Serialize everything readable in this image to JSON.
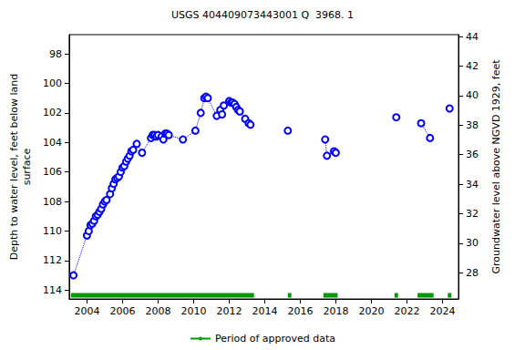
{
  "chart_data": {
    "type": "line",
    "title": "USGS 404409073443001 Q  3968. 1",
    "y_label": "Depth to water level, feet below land\nsurface",
    "y2_label": "Groundwater level above NGVD 1929, feet",
    "series": [
      {
        "type": "line",
        "color": "#0000ff",
        "marker": "open_circle",
        "line_style": "dotted",
        "x": [
          2003.24,
          2004.0,
          2004.1,
          2004.2,
          2004.3,
          2004.4,
          2004.5,
          2004.6,
          2004.7,
          2004.8,
          2004.9,
          2005.0,
          2005.1,
          2005.3,
          2005.4,
          2005.5,
          2005.6,
          2005.7,
          2005.8,
          2005.9,
          2006.0,
          2006.1,
          2006.2,
          2006.3,
          2006.4,
          2006.5,
          2006.6,
          2006.8,
          2007.1,
          2007.6,
          2007.7,
          2007.8,
          2007.9,
          2008.0,
          2008.2,
          2008.3,
          2008.4,
          2008.5,
          2008.6,
          2009.4,
          2010.1,
          2010.4,
          2010.6,
          2010.7,
          2010.8,
          2011.3,
          2011.5,
          2011.6,
          2011.7,
          2012.0,
          2012.1,
          2012.2,
          2012.3,
          2012.4,
          2012.5,
          2012.6,
          2012.9,
          2013.1,
          2013.2,
          null,
          2015.3,
          null,
          2017.4,
          2017.5,
          2017.9,
          2018.0,
          null,
          2021.4,
          null,
          2022.8,
          2023.3,
          null,
          2024.4
        ],
        "values": [
          113.0,
          110.3,
          110.0,
          109.6,
          109.5,
          109.3,
          109.0,
          108.9,
          108.7,
          108.5,
          108.2,
          108.0,
          107.9,
          107.5,
          107.1,
          106.8,
          106.5,
          106.4,
          106.3,
          106.0,
          105.7,
          105.6,
          105.3,
          105.1,
          104.9,
          104.6,
          104.5,
          104.1,
          104.7,
          103.7,
          103.5,
          103.5,
          103.6,
          103.5,
          103.6,
          103.8,
          103.4,
          103.4,
          103.5,
          103.8,
          103.2,
          102.0,
          101.0,
          100.9,
          101.0,
          102.2,
          101.8,
          102.1,
          101.5,
          101.2,
          101.3,
          101.3,
          101.4,
          101.6,
          101.8,
          101.9,
          102.4,
          102.7,
          102.8,
          null,
          103.2,
          null,
          103.8,
          104.9,
          104.6,
          104.7,
          null,
          102.3,
          null,
          102.7,
          103.7,
          null,
          101.7
        ]
      },
      {
        "name": "Period of approved data",
        "type": "period",
        "color": "#009900",
        "periods": [
          [
            2003.1,
            2013.4
          ],
          [
            2015.3,
            2015.5
          ],
          [
            2017.3,
            2018.1
          ],
          [
            2021.3,
            2021.5
          ],
          [
            2022.6,
            2023.5
          ],
          [
            2024.3,
            2024.5
          ]
        ],
        "level": 114.35
      }
    ],
    "xlim": [
      2003.0,
      2024.9
    ],
    "xticks": [
      2004,
      2006,
      2008,
      2010,
      2012,
      2014,
      2016,
      2018,
      2020,
      2022,
      2024
    ],
    "ylim": [
      114.6,
      96.7
    ],
    "yticks": [
      98,
      100,
      102,
      104,
      106,
      108,
      110,
      112,
      114
    ],
    "y2lim": [
      26.23,
      44.13
    ],
    "y2ticks": [
      28,
      30,
      32,
      34,
      36,
      38,
      40,
      42,
      44
    ],
    "grid": false,
    "legend": "bottom"
  }
}
